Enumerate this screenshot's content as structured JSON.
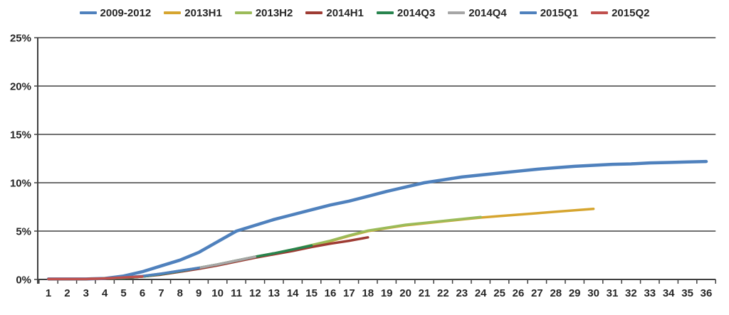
{
  "chart_data": {
    "type": "line",
    "title": "",
    "xlabel": "",
    "ylabel": "",
    "x_tick_labels": [
      "1",
      "2",
      "3",
      "4",
      "5",
      "6",
      "7",
      "8",
      "9",
      "10",
      "11",
      "12",
      "13",
      "14",
      "15",
      "16",
      "17",
      "18",
      "19",
      "20",
      "21",
      "22",
      "23",
      "24",
      "25",
      "26",
      "27",
      "28",
      "29",
      "30",
      "31",
      "32",
      "33",
      "34",
      "35",
      "36"
    ],
    "y_tick_labels": [
      "0%",
      "5%",
      "10%",
      "15%",
      "20%",
      "25%"
    ],
    "y_tick_values": [
      0,
      5,
      10,
      15,
      20,
      25
    ],
    "ylim": [
      0,
      25
    ],
    "xlim": [
      1,
      36
    ],
    "grid": "horizontal",
    "legend_position": "top",
    "axis_color": "#404040",
    "text_color": "#262626",
    "series": [
      {
        "name": "2009-2012",
        "color": "#4F81BD",
        "start_x": 1,
        "values": [
          0.05,
          0.05,
          0.05,
          0.1,
          0.35,
          0.8,
          1.4,
          2.0,
          2.8,
          3.9,
          5.0,
          5.6,
          6.2,
          6.7,
          7.2,
          7.7,
          8.1,
          8.6,
          9.1,
          9.55,
          10.0,
          10.3,
          10.6,
          10.8,
          11.0,
          11.2,
          11.4,
          11.55,
          11.7,
          11.8,
          11.9,
          11.95,
          12.05,
          12.1,
          12.15,
          12.2
        ]
      },
      {
        "name": "2013H1",
        "color": "#D6A52F",
        "start_x": 1,
        "values": [
          0.05,
          0.05,
          0.05,
          0.1,
          0.15,
          0.3,
          0.55,
          0.85,
          1.15,
          1.5,
          1.9,
          2.3,
          2.65,
          3.05,
          3.5,
          3.95,
          4.5,
          5.0,
          5.3,
          5.6,
          5.8,
          6.0,
          6.2,
          6.4,
          6.55,
          6.7,
          6.85,
          7.0,
          7.15,
          7.3
        ]
      },
      {
        "name": "2013H2",
        "color": "#9BBB59",
        "start_x": 1,
        "values": [
          0.05,
          0.05,
          0.05,
          0.1,
          0.15,
          0.3,
          0.55,
          0.85,
          1.2,
          1.55,
          1.95,
          2.35,
          2.7,
          3.1,
          3.55,
          4.0,
          4.55,
          5.05,
          5.35,
          5.65,
          5.85,
          6.05,
          6.25,
          6.45
        ]
      },
      {
        "name": "2014H1",
        "color": "#9E3B33",
        "start_x": 1,
        "values": [
          0.05,
          0.05,
          0.05,
          0.1,
          0.15,
          0.3,
          0.5,
          0.8,
          1.1,
          1.45,
          1.85,
          2.25,
          2.6,
          2.95,
          3.35,
          3.7,
          4.0,
          4.35
        ]
      },
      {
        "name": "2014Q3",
        "color": "#28844E",
        "start_x": 1,
        "values": [
          0.05,
          0.05,
          0.05,
          0.1,
          0.15,
          0.3,
          0.55,
          0.85,
          1.2,
          1.55,
          1.95,
          2.35,
          2.7,
          3.1,
          3.5
        ]
      },
      {
        "name": "2014Q4",
        "color": "#A6A6A6",
        "start_x": 1,
        "values": [
          0.05,
          0.05,
          0.05,
          0.1,
          0.2,
          0.35,
          0.6,
          0.9,
          1.2,
          1.55,
          1.95,
          2.35
        ]
      },
      {
        "name": "2015Q1",
        "color": "#4F81BD",
        "start_x": 1,
        "values": [
          0.05,
          0.05,
          0.05,
          0.1,
          0.2,
          0.35,
          0.6,
          0.9,
          1.2
        ]
      },
      {
        "name": "2015Q2",
        "color": "#C0504D",
        "start_x": 1,
        "values": [
          0.05,
          0.05,
          0.05,
          0.1,
          0.2,
          0.3
        ]
      }
    ]
  }
}
